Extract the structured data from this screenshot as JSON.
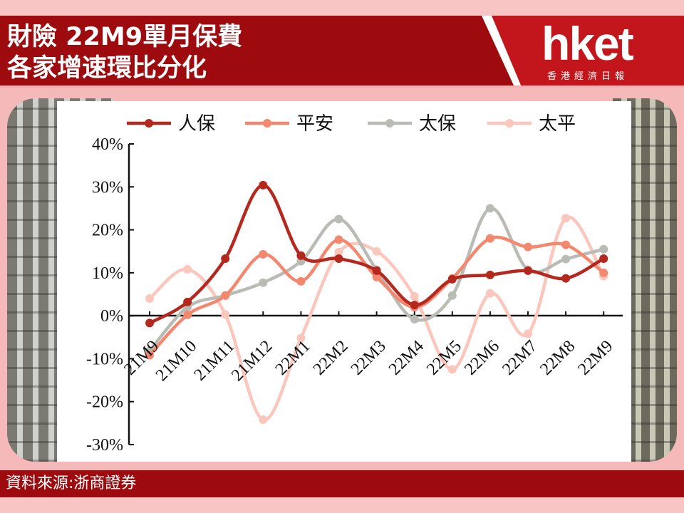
{
  "header": {
    "title": "財險 22M9單月保費\n各家增速環比分化",
    "logo": "hket",
    "logo_sub": "香港經濟日報"
  },
  "footer": {
    "source": "資料來源:浙商證券"
  },
  "colors": {
    "header_bg": "#9e0b0f",
    "page_bg": "#f6b9b9",
    "series": [
      "#b5281d",
      "#f4886f",
      "#b9bcb5",
      "#fbc6bb"
    ]
  },
  "chart_data": {
    "type": "line",
    "title": "",
    "xlabel": "",
    "ylabel": "",
    "smooth": true,
    "legend_position": "top",
    "grid": false,
    "ylim": [
      -0.3,
      0.4
    ],
    "yticks": [
      0.4,
      0.3,
      0.2,
      0.1,
      0,
      -0.1,
      -0.2,
      -0.3
    ],
    "ytick_labels": [
      "40%",
      "30%",
      "20%",
      "10%",
      "0%",
      "-10%",
      "-20%",
      "-30%"
    ],
    "categories": [
      "21M9",
      "21M10",
      "21M11",
      "21M12",
      "22M1",
      "22M2",
      "22M3",
      "22M4",
      "22M5",
      "22M6",
      "22M7",
      "22M8",
      "22M9"
    ],
    "series": [
      {
        "name": "人保",
        "values": [
          -0.017,
          0.032,
          0.133,
          0.304,
          0.14,
          0.133,
          0.105,
          0.025,
          0.085,
          0.095,
          0.105,
          0.087,
          0.133
        ]
      },
      {
        "name": "平安",
        "values": [
          -0.092,
          0.002,
          0.047,
          0.143,
          0.08,
          0.177,
          0.09,
          0.02,
          0.087,
          0.18,
          0.16,
          0.165,
          0.1
        ]
      },
      {
        "name": "太保",
        "values": [
          -0.082,
          0.02,
          0.047,
          0.077,
          0.127,
          0.225,
          0.107,
          -0.008,
          0.047,
          0.25,
          0.107,
          0.132,
          0.155
        ]
      },
      {
        "name": "太平",
        "values": [
          0.04,
          0.108,
          0.003,
          -0.242,
          -0.052,
          0.148,
          0.15,
          0.045,
          -0.125,
          0.052,
          -0.042,
          0.227,
          0.092
        ]
      }
    ]
  }
}
